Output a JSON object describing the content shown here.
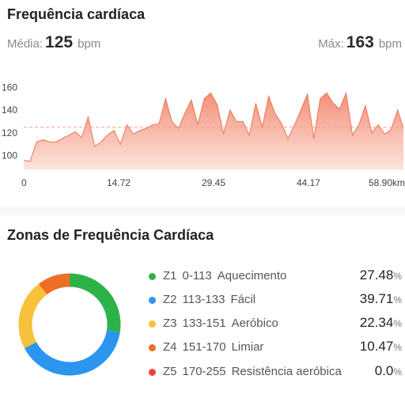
{
  "hr_card": {
    "title": "Frequência cardíaca",
    "avg_label": "Média:",
    "avg_value": "125",
    "avg_unit": "bpm",
    "max_label": "Máx:",
    "max_value": "163",
    "max_unit": "bpm"
  },
  "chart_data": {
    "type": "area",
    "title": "",
    "xlabel": "",
    "ylabel": "",
    "x_ticks": [
      "0",
      "14.72",
      "29.45",
      "44.17",
      "58.90km"
    ],
    "y_ticks": [
      "100",
      "120",
      "140",
      "160"
    ],
    "xlim": [
      0,
      58.9
    ],
    "ylim": [
      88,
      163
    ],
    "x_unit": "km",
    "average_line": 125,
    "series": [
      {
        "color": "#f07a5a",
        "x": [
          0,
          1,
          2,
          3,
          4,
          5,
          6,
          7,
          8,
          9,
          10,
          11,
          12,
          13,
          14,
          15,
          16,
          17,
          18,
          19,
          20,
          21,
          22,
          23,
          24,
          25,
          26,
          27,
          28,
          29,
          30,
          31,
          32,
          33,
          34,
          35,
          36,
          37,
          38,
          39,
          40,
          41,
          42,
          43,
          44,
          45,
          46,
          47,
          48,
          49,
          50,
          51,
          52,
          53,
          54,
          55,
          56,
          57,
          58,
          58.9
        ],
        "y": [
          96,
          95,
          112,
          114,
          112,
          112,
          115,
          118,
          121,
          116,
          134,
          108,
          112,
          118,
          122,
          110,
          127,
          119,
          122,
          124,
          127,
          128,
          150,
          130,
          124,
          137,
          149,
          127,
          150,
          155,
          145,
          119,
          140,
          130,
          130,
          118,
          146,
          125,
          152,
          137,
          128,
          115,
          127,
          140,
          154,
          115,
          150,
          155,
          146,
          141,
          155,
          118,
          127,
          144,
          120,
          127,
          119,
          123,
          140,
          124
        ]
      }
    ]
  },
  "zones_card": {
    "title": "Zonas de Frequência Cardíaca",
    "percent_sign": "%",
    "zones": [
      {
        "id": "Z1",
        "range": "0-113",
        "name": "Aquecimento",
        "percent": "27.48",
        "color": "#2db24a"
      },
      {
        "id": "Z2",
        "range": "113-133",
        "name": "Fácil",
        "percent": "39.71",
        "color": "#2c95f0"
      },
      {
        "id": "Z3",
        "range": "133-151",
        "name": "Aeróbico",
        "percent": "22.34",
        "color": "#f6c23a"
      },
      {
        "id": "Z4",
        "range": "151-170",
        "name": "Limiar",
        "percent": "10.47",
        "color": "#ee6e25"
      },
      {
        "id": "Z5",
        "range": "170-255",
        "name": "Resistência aeróbica",
        "percent": "0.0",
        "color": "#e8453a"
      }
    ]
  }
}
